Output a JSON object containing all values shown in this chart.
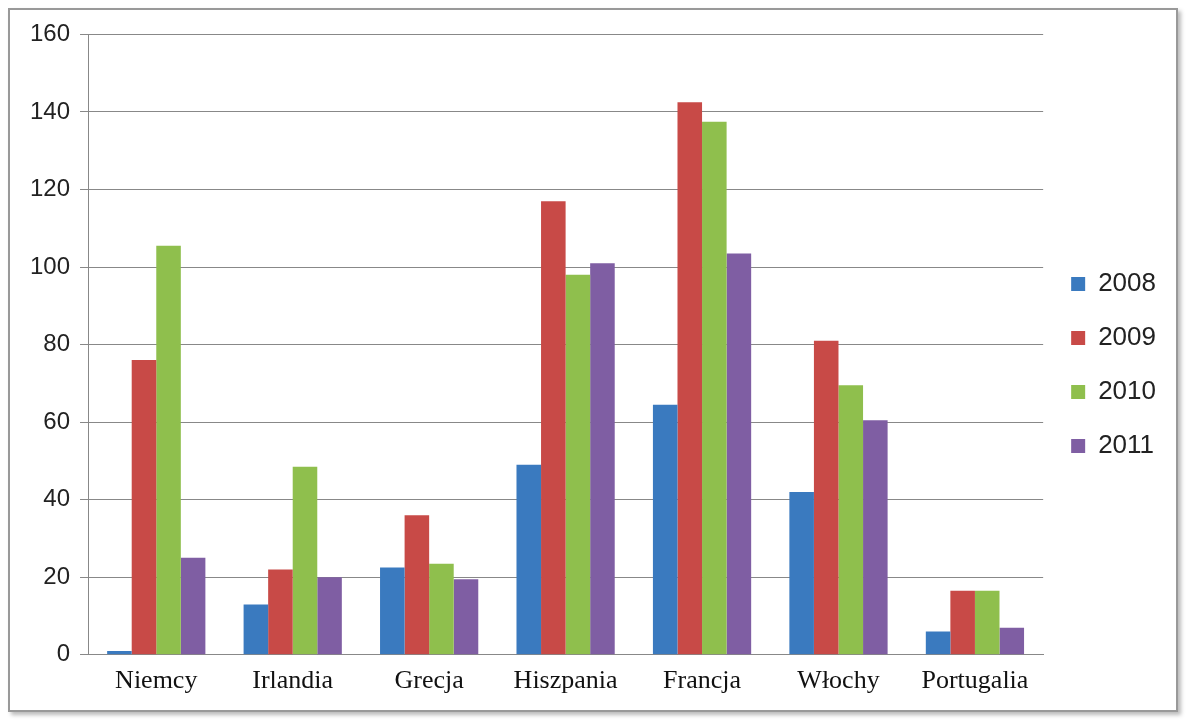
{
  "chart_data": {
    "type": "bar",
    "categories": [
      "Niemcy",
      "Irlandia",
      "Grecja",
      "Hiszpania",
      "Francja",
      "Włochy",
      "Portugalia"
    ],
    "series": [
      {
        "name": "2008",
        "color": "#3a7abf",
        "values": [
          1,
          13,
          22.5,
          49,
          64.5,
          42,
          6
        ]
      },
      {
        "name": "2009",
        "color": "#c84a47",
        "values": [
          76,
          22,
          36,
          117,
          142.5,
          81,
          16.5
        ]
      },
      {
        "name": "2010",
        "color": "#8fbf4d",
        "values": [
          105.5,
          48.5,
          23.5,
          98,
          137.5,
          69.5,
          16.5
        ]
      },
      {
        "name": "2011",
        "color": "#7f5ea3",
        "values": [
          25,
          20,
          19.5,
          101,
          103.5,
          60.5,
          7
        ]
      }
    ],
    "ylim": [
      0,
      160
    ],
    "yticks": [
      0,
      20,
      40,
      60,
      80,
      100,
      120,
      140,
      160
    ],
    "grid": "y",
    "legend": "right"
  }
}
